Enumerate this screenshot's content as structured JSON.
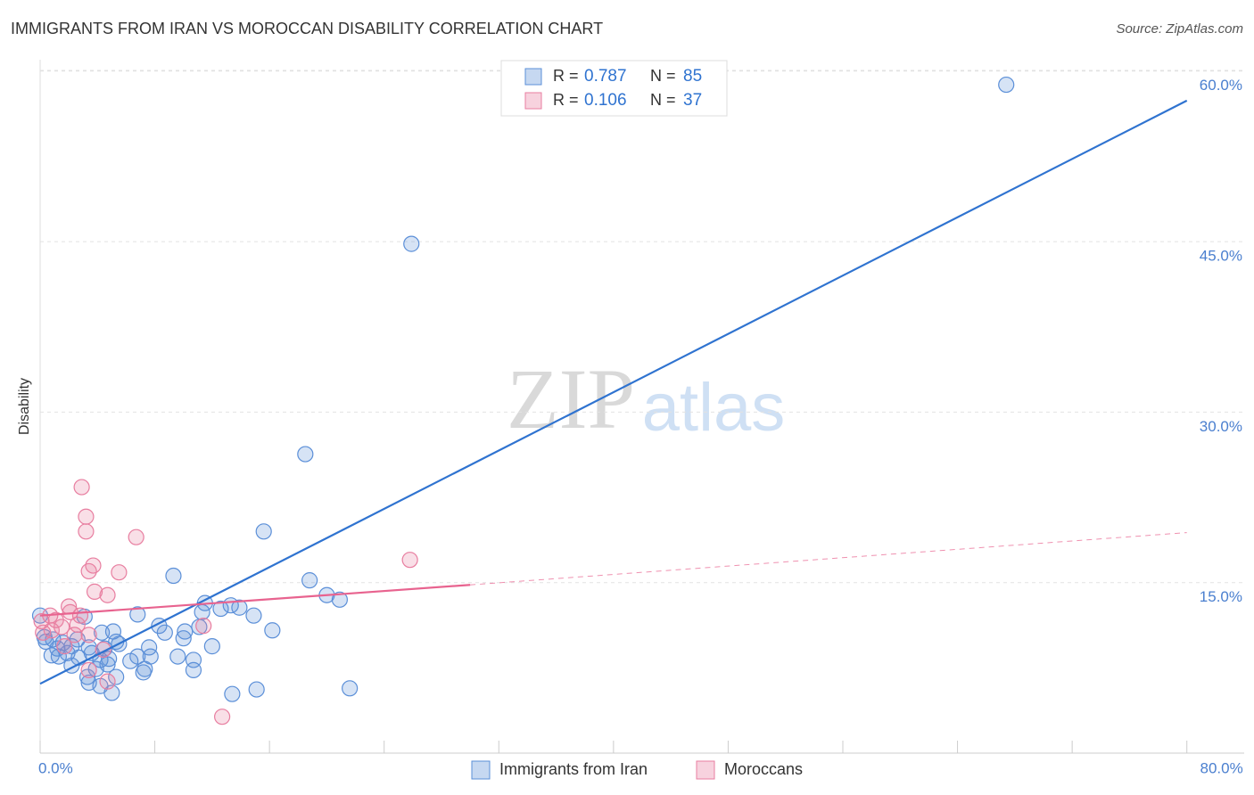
{
  "chart_data": {
    "type": "scatter",
    "title": "IMMIGRANTS FROM IRAN VS MOROCCAN DISABILITY CORRELATION CHART",
    "source": "Source: ZipAtlas.com",
    "watermark": [
      "ZIP",
      "atlas"
    ],
    "y_label": "Disability",
    "xlim": [
      0,
      84
    ],
    "ylim": [
      0,
      61
    ],
    "xticks": [
      {
        "value": 0,
        "label": "0.0%"
      },
      {
        "value": 80,
        "label": "80.0%"
      }
    ],
    "x_tick_marks": [
      0,
      8,
      16,
      24,
      32,
      40,
      48,
      56,
      64,
      72,
      80
    ],
    "yticks": [
      {
        "value": 15,
        "label": "15.0%"
      },
      {
        "value": 30,
        "label": "30.0%"
      },
      {
        "value": 45,
        "label": "45.0%"
      },
      {
        "value": 60,
        "label": "60.0%"
      }
    ],
    "grid": true,
    "legend_stats": [
      {
        "r_label": "R =",
        "r": 0.787,
        "n_label": "N =",
        "n": 85
      },
      {
        "r_label": "R =",
        "r": 0.106,
        "n_label": "N =",
        "n": 37
      }
    ],
    "series": [
      {
        "name": "Immigrants from Iran",
        "color": "#5b8fd8",
        "line_color": "#2f73d0",
        "x": [
          67.4,
          25.9,
          18.5,
          15.6,
          9.3,
          18.8,
          20.0,
          20.9,
          11.5,
          13.3,
          12.6,
          11.3,
          13.9,
          14.9,
          6.8,
          8.3,
          8.7,
          11.1,
          10.1,
          10.0,
          16.2,
          12.0,
          7.6,
          7.7,
          9.6,
          6.8,
          6.3,
          7.3,
          10.7,
          7.2,
          10.7,
          13.4,
          15.1,
          21.6,
          3.1,
          5.1,
          4.3,
          5.3,
          5.5,
          4.5,
          3.4,
          2.6,
          2.2,
          1.6,
          0.9,
          0.4,
          1.2,
          1.9,
          2.7,
          3.6,
          4.2,
          4.8,
          4.7,
          2.2,
          3.3,
          3.4,
          5.3,
          4.2,
          5.0,
          3.9,
          1.3,
          0,
          0.3,
          0.8
        ],
        "values": [
          58.8,
          44.8,
          26.3,
          19.5,
          15.6,
          15.2,
          13.9,
          13.5,
          13.2,
          13.0,
          12.7,
          12.4,
          12.8,
          12.1,
          12.2,
          11.2,
          10.6,
          11.1,
          10.7,
          10.1,
          10.8,
          9.4,
          9.3,
          8.5,
          8.5,
          8.5,
          8.1,
          7.4,
          7.3,
          7.1,
          8.2,
          5.2,
          5.6,
          5.7,
          12.0,
          10.7,
          10.6,
          9.8,
          9.6,
          9.2,
          9.3,
          10.0,
          9.4,
          9.7,
          10.0,
          9.8,
          9.2,
          8.8,
          8.4,
          8.8,
          8.2,
          8.3,
          7.8,
          7.7,
          6.7,
          6.2,
          6.7,
          5.9,
          5.3,
          7.4,
          8.5,
          12.1,
          10.2,
          8.6
        ],
        "trend": {
          "x": [
            0,
            80
          ],
          "y": [
            6.1,
            57.4
          ]
        }
      },
      {
        "name": "Moroccans",
        "color": "#e87ea0",
        "line_color": "#e8638f",
        "x": [
          2.9,
          3.2,
          3.2,
          6.7,
          25.8,
          3.7,
          3.4,
          5.5,
          3.8,
          4.7,
          2.0,
          2.1,
          2.8,
          0.7,
          1.1,
          0.1,
          2.6,
          1.5,
          0.8,
          2.4,
          3.4,
          11.4,
          0.2,
          1.7,
          4.4,
          3.4,
          4.7,
          12.7
        ],
        "values": [
          23.4,
          20.8,
          19.5,
          19.0,
          17.0,
          16.5,
          16.0,
          15.9,
          14.2,
          13.9,
          12.9,
          12.4,
          12.1,
          12.1,
          11.7,
          11.6,
          11.3,
          11.1,
          10.8,
          10.4,
          10.4,
          11.2,
          10.6,
          9.4,
          9.1,
          7.3,
          6.3,
          3.2
        ],
        "trend": {
          "x": [
            0,
            30,
            80
          ],
          "y": [
            12.1,
            14.8,
            19.4
          ],
          "dashed_from": 30
        }
      }
    ]
  }
}
